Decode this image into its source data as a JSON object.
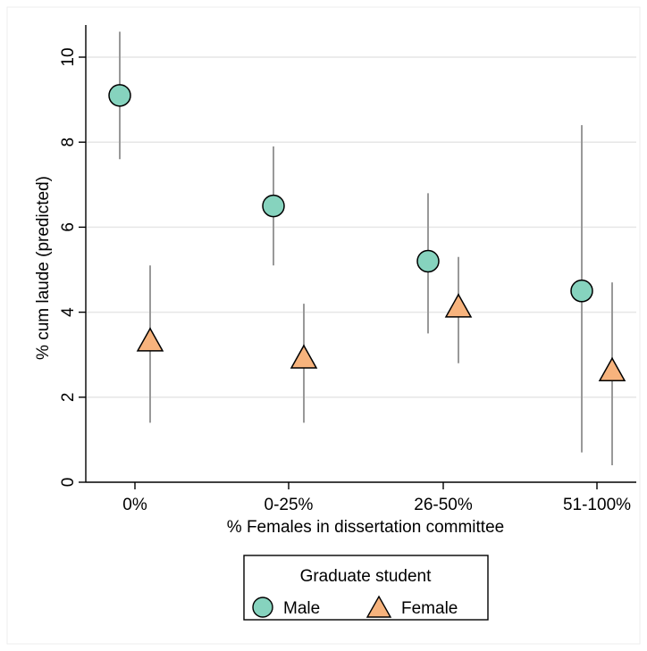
{
  "chart_data": {
    "type": "scatter",
    "xlabel": "% Females in dissertation committee",
    "ylabel": "% cum laude (predicted)",
    "categories": [
      "0%",
      "0-25%",
      "26-50%",
      "51-100%"
    ],
    "ylim": [
      0,
      10.6
    ],
    "yticks": [
      0,
      2,
      4,
      6,
      8,
      10
    ],
    "grid": true,
    "legend": {
      "title": "Graduate student",
      "position": "bottom",
      "entries": [
        "Male",
        "Female"
      ]
    },
    "series": [
      {
        "name": "Male",
        "marker": "circle",
        "color": "#86d3be",
        "values": [
          9.1,
          6.5,
          5.2,
          4.5
        ],
        "ci_low": [
          7.6,
          5.1,
          3.5,
          0.7
        ],
        "ci_high": [
          10.6,
          7.9,
          6.8,
          8.4
        ]
      },
      {
        "name": "Female",
        "marker": "triangle",
        "color": "#f7b37d",
        "values": [
          3.3,
          2.9,
          4.1,
          2.6
        ],
        "ci_low": [
          1.4,
          1.4,
          2.8,
          0.4
        ],
        "ci_high": [
          5.1,
          4.2,
          5.3,
          4.7
        ]
      }
    ]
  }
}
